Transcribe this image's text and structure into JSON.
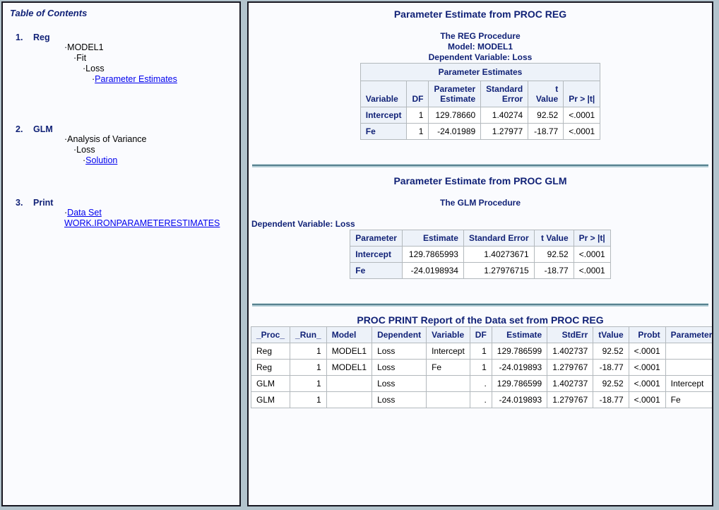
{
  "toc": {
    "title": "Table of Contents",
    "sections": [
      {
        "number": "1.",
        "label": "Reg",
        "entries": [
          {
            "text": "MODEL1",
            "link": false,
            "level": 0
          },
          {
            "text": "Fit",
            "link": false,
            "level": 1
          },
          {
            "text": "Loss",
            "link": false,
            "level": 2
          },
          {
            "text": "Parameter Estimates",
            "link": true,
            "level": 3
          }
        ]
      },
      {
        "number": "2.",
        "label": "GLM",
        "entries": [
          {
            "text": "Analysis of Variance",
            "link": false,
            "level": 0
          },
          {
            "text": "Loss",
            "link": false,
            "level": 1
          },
          {
            "text": "Solution",
            "link": true,
            "level": 2
          }
        ]
      },
      {
        "number": "3.",
        "label": "Print",
        "entries": [
          {
            "text": "Data Set WORK.IRONPARAMETERESTIMATES",
            "link": true,
            "level": 0
          }
        ]
      }
    ]
  },
  "report": {
    "sections": [
      {
        "title": "Parameter Estimate from PROC REG",
        "subtitles_center": [
          "The REG Procedure",
          "Model: MODEL1",
          "Dependent Variable: Loss"
        ],
        "subtitle_left": "",
        "table": {
          "caption": "Parameter Estimates",
          "columns": [
            "Variable",
            "DF",
            "Parameter Estimate",
            "Standard Error",
            "t Value",
            "Pr > |t|"
          ],
          "rows": [
            [
              "Intercept",
              "1",
              "129.78660",
              "1.40274",
              "92.52",
              "<.0001"
            ],
            [
              "Fe",
              "1",
              "-24.01989",
              "1.27977",
              "-18.77",
              "<.0001"
            ]
          ]
        }
      },
      {
        "title": "Parameter Estimate from PROC GLM",
        "subtitles_center": [
          "The GLM Procedure"
        ],
        "subtitle_left": "Dependent Variable: Loss",
        "table": {
          "caption": "",
          "columns": [
            "Parameter",
            "Estimate",
            "Standard Error",
            "t Value",
            "Pr > |t|"
          ],
          "rows": [
            [
              "Intercept",
              "129.7865993",
              "1.40273671",
              "92.52",
              "<.0001"
            ],
            [
              "Fe",
              "-24.0198934",
              "1.27976715",
              "-18.77",
              "<.0001"
            ]
          ]
        }
      },
      {
        "title": "PROC PRINT Report of the Data set from PROC REG",
        "subtitles_center": [],
        "subtitle_left": "",
        "table": {
          "caption": "",
          "columns": [
            "_Proc_",
            "_Run_",
            "Model",
            "Dependent",
            "Variable",
            "DF",
            "Estimate",
            "StdErr",
            "tValue",
            "Probt",
            "Parameter"
          ],
          "rows": [
            [
              "Reg",
              "1",
              "MODEL1",
              "Loss",
              "Intercept",
              "1",
              "129.786599",
              "1.402737",
              "92.52",
              "<.0001",
              ""
            ],
            [
              "Reg",
              "1",
              "MODEL1",
              "Loss",
              "Fe",
              "1",
              "-24.019893",
              "1.279767",
              "-18.77",
              "<.0001",
              ""
            ],
            [
              "GLM",
              "1",
              "",
              "Loss",
              "",
              ".",
              "129.786599",
              "1.402737",
              "92.52",
              "<.0001",
              "Intercept"
            ],
            [
              "GLM",
              "1",
              "",
              "Loss",
              "",
              ".",
              "-24.019893",
              "1.279767",
              "-18.77",
              "<.0001",
              "Fe"
            ]
          ]
        }
      }
    ]
  },
  "colors": {
    "heading_navy": "#112277",
    "header_cell_bg": "#edf2f9",
    "table_border": "#b3b9bd",
    "page_bg": "#fafbfe",
    "chrome_bg": "#b3c4cd",
    "link_blue": "#0000EE",
    "divider_teal": "#57828f"
  }
}
